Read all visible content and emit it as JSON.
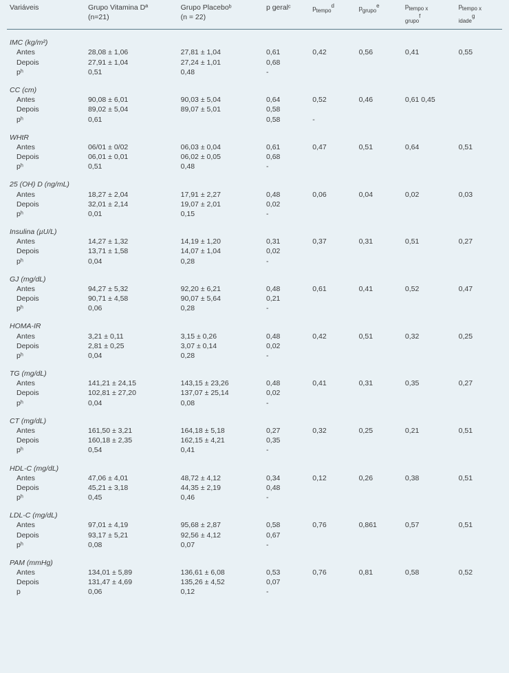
{
  "headers": {
    "var": "Variáveis",
    "g1_line1": "Grupo Vitamina Dª",
    "g1_line2": "(n=21)",
    "g2_line1": "Grupo Placeboᵇ",
    "g2_line2": "(n = 22)",
    "pg": "p geralᶜ",
    "pt_main": "p",
    "pt_sub": "tempo",
    "pt_sup": "d",
    "pgr_main": "p",
    "pgr_sub": "grupo",
    "pgr_sup": "e",
    "ptg_main": "p",
    "ptg_sub1": "tempo x",
    "ptg_sub2": "grupo",
    "ptg_sup": "f",
    "pti_main": "p",
    "pti_sub1": "tempo x",
    "pti_sub2": "idade",
    "pti_sup": "g"
  },
  "row_labels": {
    "antes": "Antes",
    "depois": "Depois",
    "ph": "pʰ",
    "p": "p"
  },
  "sections": [
    {
      "title": "IMC (kg/m²)",
      "antes": {
        "g1": "28,08 ± 1,06",
        "g2": "27,81 ± 1,04",
        "pg": "0,61",
        "pt": "0,42",
        "pgr": "0,56",
        "ptg": "0,41",
        "pti": "0,55"
      },
      "depois": {
        "g1": "27,91 ± 1,04",
        "g2": "27,24 ± 1,01",
        "pg": "0,68",
        "pt": "",
        "pgr": "",
        "ptg": "",
        "pti": ""
      },
      "ph": {
        "g1": "0,51",
        "g2": "0,48",
        "pg": "-",
        "pt": "",
        "pgr": "",
        "ptg": "",
        "pti": ""
      },
      "ph_label": "ph"
    },
    {
      "title": "CC (cm)",
      "antes": {
        "g1": "90,08 ± 6,01",
        "g2": "90,03 ± 5,04",
        "pg": "0,64",
        "pt": "0,52",
        "pgr": "0,46",
        "ptg": "0,61 0,45",
        "pti": ""
      },
      "depois": {
        "g1": "89,02 ± 5,04",
        "g2": "89,07 ± 5,01",
        "pg": "0,58",
        "pt": "",
        "pgr": "",
        "ptg": "",
        "pti": ""
      },
      "ph": {
        "g1": "0,61",
        "g2": "",
        "pg": "0,58",
        "pt": "-",
        "pgr": "",
        "ptg": "",
        "pti": ""
      },
      "ph_label": "ph",
      "ph_g2_empty": true
    },
    {
      "title": "WHtR",
      "antes": {
        "g1": "06/01 ± 0/02",
        "g2": "06,03 ± 0,04",
        "pg": "0,61",
        "pt": "0,47",
        "pgr": "0,51",
        "ptg": "0,64",
        "pti": "0,51"
      },
      "depois": {
        "g1": "06,01 ± 0,01",
        "g2": "06,02 ± 0,05",
        "pg": "0,68",
        "pt": "",
        "pgr": "",
        "ptg": "",
        "pti": ""
      },
      "ph": {
        "g1": "0,51",
        "g2": "0,48",
        "pg": "-",
        "pt": "",
        "pgr": "",
        "ptg": "",
        "pti": ""
      },
      "ph_label": "ph"
    },
    {
      "title": "25 (OH) D (ng/mL)",
      "antes": {
        "g1": "18,27 ± 2,04",
        "g2": "17,91 ± 2,27",
        "pg": "0,48",
        "pt": "0,06",
        "pgr": "0,04",
        "ptg": "0,02",
        "pti": "0,03"
      },
      "depois": {
        "g1": "32,01 ± 2,14",
        "g2": "19,07 ± 2,01",
        "pg": "0,02",
        "pt": "",
        "pgr": "",
        "ptg": "",
        "pti": ""
      },
      "ph": {
        "g1": "0,01",
        "g2": "0,15",
        "pg": "-",
        "pt": "",
        "pgr": "",
        "ptg": "",
        "pti": ""
      },
      "ph_label": "ph"
    },
    {
      "title": "Insulina (µU/L)",
      "antes": {
        "g1": "14,27 ± 1,32",
        "g2": "14,19 ± 1,20",
        "pg": "0,31",
        "pt": "0,37",
        "pgr": "0,31",
        "ptg": "0,51",
        "pti": "0,27"
      },
      "depois": {
        "g1": "13,71 ± 1,58",
        "g2": "14,07 ± 1,04",
        "pg": "0,02",
        "pt": "",
        "pgr": "",
        "ptg": "",
        "pti": ""
      },
      "ph": {
        "g1": "0,04",
        "g2": "0,28",
        "pg": "-",
        "pt": "",
        "pgr": "",
        "ptg": "",
        "pti": ""
      },
      "ph_label": "ph"
    },
    {
      "title": "GJ (mg/dL)",
      "antes": {
        "g1": "94,27 ± 5,32",
        "g2": "92,20 ± 6,21",
        "pg": "0,48",
        "pt": "0,61",
        "pgr": "0,41",
        "ptg": "0,52",
        "pti": "0,47"
      },
      "depois": {
        "g1": "90,71 ± 4,58",
        "g2": "90,07 ± 5,64",
        "pg": "0,21",
        "pt": "",
        "pgr": "",
        "ptg": "",
        "pti": ""
      },
      "ph": {
        "g1": "0,06",
        "g2": "0,28",
        "pg": "-",
        "pt": "",
        "pgr": "",
        "ptg": "",
        "pti": ""
      },
      "ph_label": "ph"
    },
    {
      "title": "HOMA-IR",
      "antes": {
        "g1": "3,21 ± 0,11",
        "g2": "3,15 ± 0,26",
        "pg": "0,48",
        "pt": "0,42",
        "pgr": "0,51",
        "ptg": "0,32",
        "pti": "0,25"
      },
      "depois": {
        "g1": "2,81 ± 0,25",
        "g2": "3,07 ± 0,14",
        "pg": "0,02",
        "pt": "",
        "pgr": "",
        "ptg": "",
        "pti": ""
      },
      "ph": {
        "g1": "0,04",
        "g2": "0,28",
        "pg": "-",
        "pt": "",
        "pgr": "",
        "ptg": "",
        "pti": ""
      },
      "ph_label": "ph"
    },
    {
      "title": "TG (mg/dL)",
      "antes": {
        "g1": "141,21 ± 24,15",
        "g2": "143,15 ± 23,26",
        "pg": "0,48",
        "pt": "0,41",
        "pgr": "0,31",
        "ptg": "0,35",
        "pti": "0,27"
      },
      "depois": {
        "g1": "102,81 ± 27,20",
        "g2": "137,07 ± 25,14",
        "pg": "0,02",
        "pt": "",
        "pgr": "",
        "ptg": "",
        "pti": ""
      },
      "ph": {
        "g1": "0,04",
        "g2": "0,08",
        "pg": "-",
        "pt": "",
        "pgr": "",
        "ptg": "",
        "pti": ""
      },
      "ph_label": "ph"
    },
    {
      "title": "CT (mg/dL)",
      "antes": {
        "g1": "161,50 ± 3,21",
        "g2": "164,18 ± 5,18",
        "pg": "0,27",
        "pt": "0,32",
        "pgr": "0,25",
        "ptg": "0,21",
        "pti": "0,51"
      },
      "depois": {
        "g1": "160,18 ± 2,35",
        "g2": "162,15 ± 4,21",
        "pg": "0,35",
        "pt": "",
        "pgr": "",
        "ptg": "",
        "pti": ""
      },
      "ph": {
        "g1": "0,54",
        "g2": "0,41",
        "pg": "-",
        "pt": "",
        "pgr": "",
        "ptg": "",
        "pti": ""
      },
      "ph_label": "ph"
    },
    {
      "title": "HDL-C (mg/dL)",
      "antes": {
        "g1": "47,06 ± 4,01",
        "g2": "48,72 ± 4,12",
        "pg": "0,34",
        "pt": "0,12",
        "pgr": "0,26",
        "ptg": "0,38",
        "pti": "0,51"
      },
      "depois": {
        "g1": "45,21 ± 3,18",
        "g2": "44,35 ± 2,19",
        "pg": "0,48",
        "pt": "",
        "pgr": "",
        "ptg": "",
        "pti": ""
      },
      "ph": {
        "g1": "0,45",
        "g2": "0,46",
        "pg": "-",
        "pt": "",
        "pgr": "",
        "ptg": "",
        "pti": ""
      },
      "ph_label": "ph"
    },
    {
      "title": "LDL-C (mg/dL)",
      "antes": {
        "g1": "97,01 ± 4,19",
        "g2": "95,68 ± 2,87",
        "pg": "0,58",
        "pt": "0,76",
        "pgr": "0,861",
        "ptg": "0,57",
        "pti": "0,51"
      },
      "depois": {
        "g1": "93,17 ± 5,21",
        "g2": "92,56 ± 4,12",
        "pg": "0,67",
        "pt": "",
        "pgr": "",
        "ptg": "",
        "pti": ""
      },
      "ph": {
        "g1": "0,08",
        "g2": "0,07",
        "pg": "-",
        "pt": "",
        "pgr": "",
        "ptg": "",
        "pti": ""
      },
      "ph_label": "ph"
    },
    {
      "title": "PAM (mmHg)",
      "antes": {
        "g1": "134,01 ± 5,89",
        "g2": "136,61 ± 6,08",
        "pg": "0,53",
        "pt": "0,76",
        "pgr": "0,81",
        "ptg": "0,58",
        "pti": "0,52"
      },
      "depois": {
        "g1": "131,47 ± 4,69",
        "g2": "135,26 ± 4,52",
        "pg": "0,07",
        "pt": "",
        "pgr": "",
        "ptg": "",
        "pti": ""
      },
      "ph": {
        "g1": "0,06",
        "g2": "0,12",
        "pg": "-",
        "pt": "",
        "pgr": "",
        "ptg": "",
        "pti": ""
      },
      "ph_label": "p"
    }
  ]
}
